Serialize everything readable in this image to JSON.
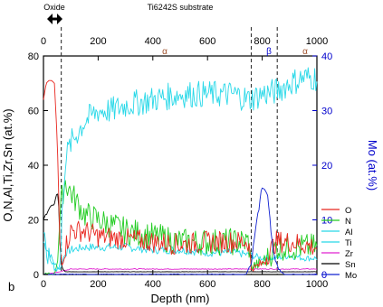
{
  "chart_data": {
    "type": "line",
    "xlabel": "Depth (nm)",
    "ylabel": "O,N,Al,Ti,Zr,Sn (at.%)",
    "y2label": "Mo (at.%)",
    "xlim": [
      0,
      1000
    ],
    "ylim": [
      0,
      80
    ],
    "y2lim": [
      0,
      40
    ],
    "xticks": [
      0,
      200,
      400,
      600,
      800,
      1000
    ],
    "yticks": [
      0,
      20,
      40,
      60,
      80
    ],
    "y2ticks": [
      0,
      10,
      20,
      30,
      40
    ],
    "top_axis_ticks": [
      0,
      200,
      400,
      600,
      800,
      1000
    ],
    "annotations": {
      "oxide": "Oxide",
      "substrate": "Ti6242S substrate",
      "alpha_left": "α",
      "beta": "β",
      "alpha_right": "α",
      "panel": "b"
    },
    "boundaries": [
      65,
      760,
      855
    ],
    "legend_position": "right",
    "grid": false,
    "series": [
      {
        "name": "O",
        "color": "#e8261f",
        "axis": "left",
        "x": [
          0,
          10,
          20,
          30,
          40,
          50,
          55,
          60,
          65,
          70,
          80,
          100,
          150,
          200,
          300,
          400,
          500,
          600,
          700,
          750,
          760,
          800,
          850,
          900,
          950,
          1000
        ],
        "y": [
          64,
          70,
          71,
          71,
          70,
          50,
          30,
          12,
          6,
          6,
          10,
          16,
          16,
          14,
          13,
          12,
          11,
          12,
          12,
          12,
          2,
          4,
          12,
          12,
          11,
          10
        ]
      },
      {
        "name": "N",
        "color": "#22cc22",
        "axis": "left",
        "x": [
          0,
          40,
          50,
          60,
          70,
          80,
          100,
          150,
          200,
          300,
          400,
          500,
          600,
          700,
          750,
          760,
          800,
          850,
          900,
          1000
        ],
        "y": [
          0,
          0,
          5,
          20,
          30,
          34,
          30,
          22,
          20,
          16,
          14,
          12,
          12,
          12,
          12,
          3,
          4,
          10,
          10,
          10
        ]
      },
      {
        "name": "Al",
        "color": "#28d8e8",
        "axis": "left",
        "x": [
          0,
          10,
          20,
          30,
          40,
          50,
          55,
          60,
          65,
          70,
          80,
          100,
          150,
          200,
          250,
          300,
          400,
          500,
          600,
          700,
          750,
          800,
          850,
          900,
          950,
          1000
        ],
        "y": [
          12,
          8,
          6,
          5,
          3,
          2,
          2,
          4,
          10,
          28,
          42,
          48,
          56,
          60,
          60,
          62,
          64,
          66,
          66,
          66,
          64,
          66,
          67,
          70,
          72,
          72
        ]
      },
      {
        "name": "Ti",
        "color": "#28d8e8",
        "axis": "left",
        "x": [
          0,
          40,
          50,
          60,
          65,
          70,
          80,
          100,
          150,
          200,
          300,
          400,
          500,
          600,
          700,
          760,
          800,
          850,
          900,
          950,
          1000
        ],
        "y": [
          12,
          4,
          3,
          2,
          3,
          5,
          8,
          9,
          10,
          10,
          10,
          9,
          9,
          8,
          8,
          7,
          6,
          6,
          7,
          6,
          6
        ]
      },
      {
        "name": "Zr",
        "color": "#e020d0",
        "axis": "left",
        "x": [
          0,
          60,
          100,
          200,
          300,
          400,
          500,
          600,
          700,
          800,
          900,
          1000
        ],
        "y": [
          0,
          1,
          2,
          2,
          2,
          2,
          2,
          2,
          2,
          2,
          2,
          2
        ]
      },
      {
        "name": "Sn",
        "color": "#000000",
        "axis": "left",
        "x": [
          0,
          20,
          40,
          50,
          55,
          60,
          65,
          70,
          80,
          100,
          200,
          400,
          600,
          700,
          760,
          800,
          850,
          900,
          1000
        ],
        "y": [
          20,
          24,
          26,
          30,
          28,
          12,
          4,
          2,
          1,
          1,
          1,
          1,
          1,
          1,
          1,
          1,
          1,
          1,
          1
        ]
      },
      {
        "name": "Mo",
        "color": "#1020d0",
        "axis": "right",
        "x": [
          0,
          100,
          200,
          300,
          400,
          500,
          600,
          700,
          740,
          760,
          780,
          800,
          820,
          840,
          860,
          880,
          900,
          1000
        ],
        "y": [
          0,
          0,
          0,
          0,
          0,
          0,
          0,
          0,
          0,
          2,
          10,
          16,
          14,
          4,
          1,
          0,
          0,
          0
        ]
      }
    ]
  }
}
